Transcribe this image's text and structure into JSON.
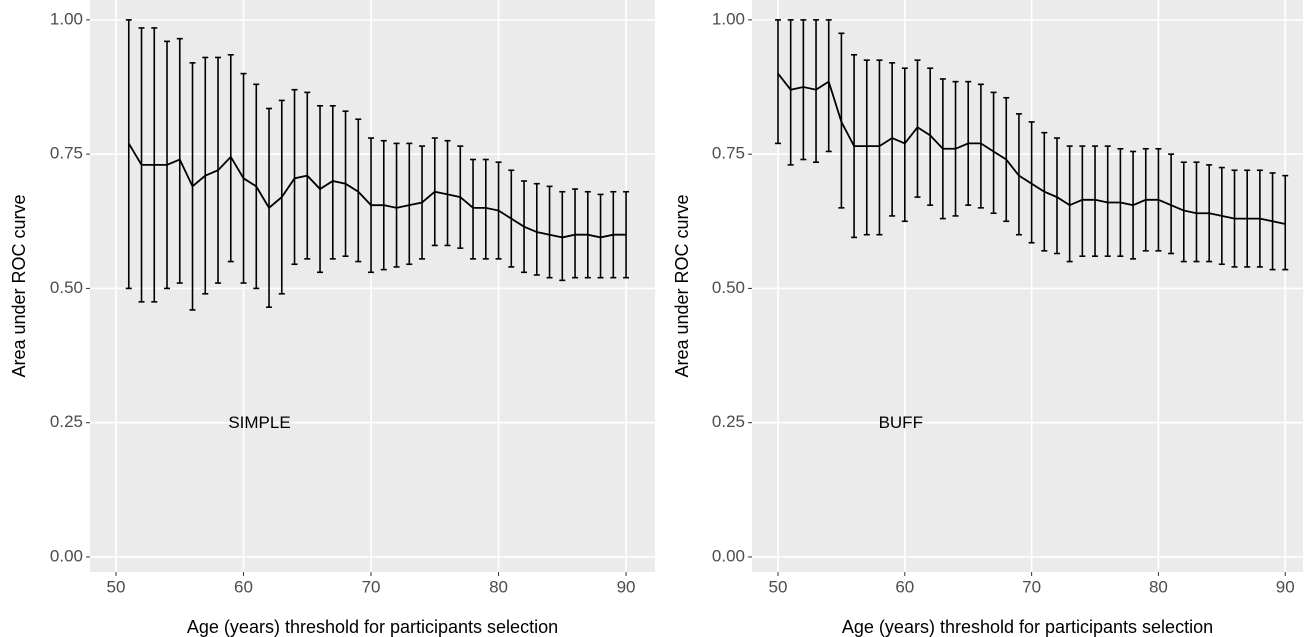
{
  "chart_data": [
    {
      "type": "line",
      "annotation": "SIMPLE",
      "x_label": "Age (years) threshold for participants selection",
      "y_label": "Area under ROC curve",
      "x": [
        51,
        52,
        53,
        54,
        55,
        56,
        57,
        58,
        59,
        60,
        61,
        62,
        63,
        64,
        65,
        66,
        67,
        68,
        69,
        70,
        71,
        72,
        73,
        74,
        75,
        76,
        77,
        78,
        79,
        80,
        81,
        82,
        83,
        84,
        85,
        86,
        87,
        88,
        89,
        90
      ],
      "series": [
        {
          "color": "#000000",
          "values": [
            0.77,
            0.73,
            0.73,
            0.73,
            0.74,
            0.69,
            0.71,
            0.72,
            0.745,
            0.705,
            0.69,
            0.65,
            0.67,
            0.705,
            0.71,
            0.685,
            0.7,
            0.695,
            0.68,
            0.655,
            0.655,
            0.65,
            0.655,
            0.66,
            0.68,
            0.675,
            0.67,
            0.65,
            0.65,
            0.645,
            0.63,
            0.615,
            0.605,
            0.6,
            0.595,
            0.6,
            0.6,
            0.595,
            0.6,
            0.6
          ],
          "lower": [
            0.5,
            0.475,
            0.475,
            0.5,
            0.51,
            0.46,
            0.49,
            0.51,
            0.55,
            0.51,
            0.5,
            0.465,
            0.49,
            0.545,
            0.555,
            0.53,
            0.555,
            0.56,
            0.55,
            0.53,
            0.535,
            0.54,
            0.545,
            0.555,
            0.58,
            0.58,
            0.575,
            0.555,
            0.555,
            0.555,
            0.54,
            0.53,
            0.525,
            0.52,
            0.515,
            0.52,
            0.52,
            0.52,
            0.52,
            0.52
          ],
          "upper": [
            1.0,
            0.985,
            0.985,
            0.96,
            0.965,
            0.92,
            0.93,
            0.93,
            0.935,
            0.9,
            0.88,
            0.835,
            0.85,
            0.87,
            0.865,
            0.84,
            0.84,
            0.83,
            0.815,
            0.78,
            0.775,
            0.77,
            0.77,
            0.765,
            0.78,
            0.775,
            0.765,
            0.74,
            0.74,
            0.735,
            0.72,
            0.7,
            0.695,
            0.69,
            0.68,
            0.685,
            0.68,
            0.675,
            0.68,
            0.68
          ]
        }
      ],
      "xlim": [
        47.96,
        92.27
      ],
      "xticks": [
        50,
        60,
        70,
        80,
        90
      ],
      "ylim": [
        -0.028,
        1.037
      ],
      "yticks": [
        {
          "value": 0,
          "label": "0.00"
        },
        {
          "value": 0.25,
          "label": "0.25"
        },
        {
          "value": 0.5,
          "label": "0.50"
        },
        {
          "value": 0.75,
          "label": "0.75"
        },
        {
          "value": 1,
          "label": "1.00"
        }
      ],
      "grid": true
    },
    {
      "type": "line",
      "annotation": "BUFF",
      "x_label": "Age (years) threshold for participants selection",
      "y_label": "Area under ROC curve",
      "x": [
        50,
        51,
        52,
        53,
        54,
        55,
        56,
        57,
        58,
        59,
        60,
        61,
        62,
        63,
        64,
        65,
        66,
        67,
        68,
        69,
        70,
        71,
        72,
        73,
        74,
        75,
        76,
        77,
        78,
        79,
        80,
        81,
        82,
        83,
        84,
        85,
        86,
        87,
        88,
        89,
        90
      ],
      "series": [
        {
          "color": "#000000",
          "values": [
            0.9,
            0.87,
            0.875,
            0.87,
            0.885,
            0.81,
            0.765,
            0.765,
            0.765,
            0.78,
            0.77,
            0.8,
            0.785,
            0.76,
            0.76,
            0.77,
            0.77,
            0.755,
            0.74,
            0.71,
            0.695,
            0.68,
            0.67,
            0.655,
            0.665,
            0.665,
            0.66,
            0.66,
            0.655,
            0.665,
            0.665,
            0.655,
            0.645,
            0.64,
            0.64,
            0.635,
            0.63,
            0.63,
            0.63,
            0.625,
            0.62
          ],
          "lower": [
            0.77,
            0.73,
            0.74,
            0.735,
            0.755,
            0.65,
            0.595,
            0.6,
            0.6,
            0.635,
            0.625,
            0.67,
            0.655,
            0.63,
            0.635,
            0.655,
            0.65,
            0.64,
            0.625,
            0.6,
            0.585,
            0.57,
            0.565,
            0.55,
            0.56,
            0.56,
            0.56,
            0.56,
            0.555,
            0.57,
            0.57,
            0.565,
            0.55,
            0.55,
            0.55,
            0.545,
            0.54,
            0.54,
            0.54,
            0.535,
            0.535
          ],
          "upper": [
            1.0,
            1.0,
            1.0,
            1.0,
            1.0,
            0.975,
            0.935,
            0.925,
            0.925,
            0.92,
            0.91,
            0.925,
            0.91,
            0.89,
            0.885,
            0.885,
            0.88,
            0.865,
            0.855,
            0.825,
            0.81,
            0.79,
            0.78,
            0.765,
            0.765,
            0.765,
            0.765,
            0.76,
            0.755,
            0.76,
            0.76,
            0.75,
            0.735,
            0.735,
            0.73,
            0.725,
            0.72,
            0.72,
            0.72,
            0.715,
            0.71
          ]
        }
      ],
      "xlim": [
        47.95,
        91.4
      ],
      "xticks": [
        50,
        60,
        70,
        80,
        90
      ],
      "ylim": [
        -0.028,
        1.037
      ],
      "yticks": [
        {
          "value": 0,
          "label": "0.00"
        },
        {
          "value": 0.25,
          "label": "0.25"
        },
        {
          "value": 0.5,
          "label": "0.50"
        },
        {
          "value": 0.75,
          "label": "0.75"
        },
        {
          "value": 1,
          "label": "1.00"
        }
      ],
      "grid": true
    }
  ]
}
